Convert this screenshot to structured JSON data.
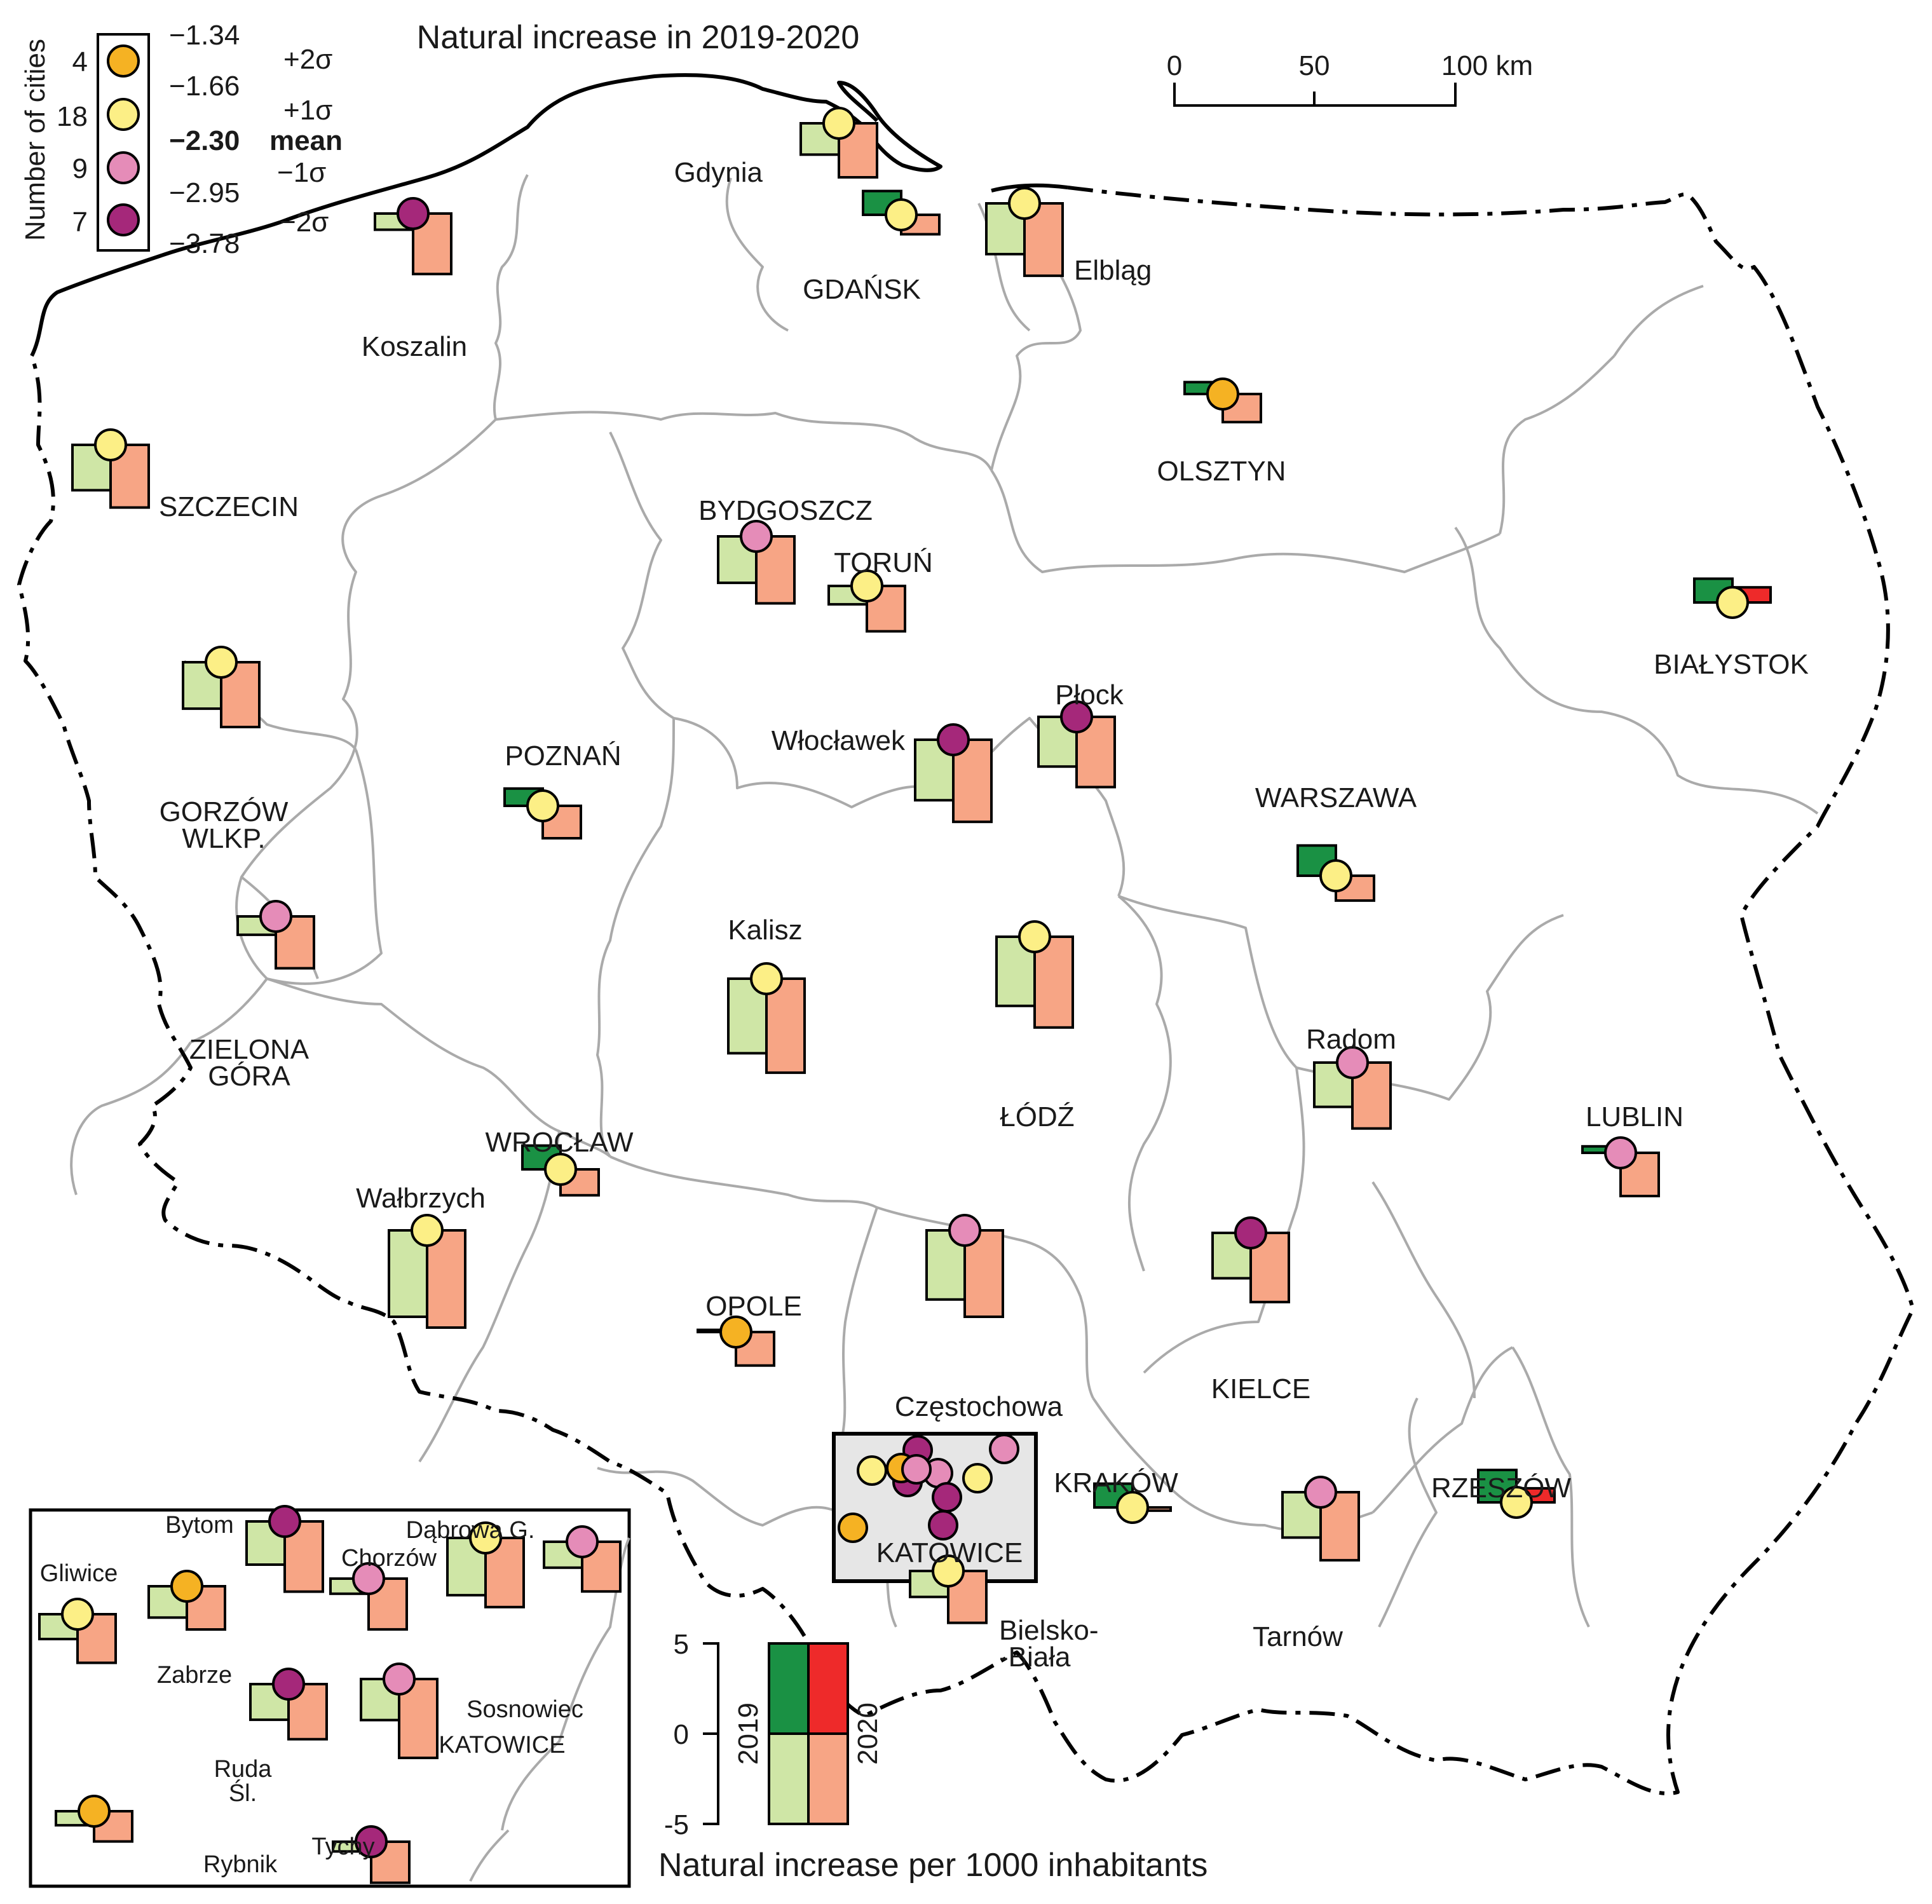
{
  "title": "Natural increase in 2019-2020",
  "colors": {
    "pos_2019": "#1a9144",
    "pos_2020": "#ee2a2a",
    "neg_2019": "#cfe6a6",
    "neg_2020": "#f7a585",
    "class_1": "#f5b223",
    "class_2": "#fcef86",
    "class_3": "#e58cb8",
    "class_4": "#a5287a",
    "border": "#aaaaaa",
    "country_border": "#000000"
  },
  "legend_classes": {
    "axis_label": "Number of cities",
    "counts": [
      "4",
      "18",
      "9",
      "7"
    ],
    "breaks": [
      "−1.34",
      "−1.66",
      "−2.30",
      "−2.95",
      "−3.78"
    ],
    "sigma_labels": [
      "+2σ",
      "+1σ",
      "mean",
      "−1σ",
      "−2σ"
    ]
  },
  "scale_bar": {
    "ticks": [
      "0",
      "50",
      "100 km"
    ]
  },
  "bar_legend": {
    "ticks": [
      "5",
      "0",
      "-5"
    ],
    "year_left": "2019",
    "year_right": "2020",
    "caption": "Natural increase per 1000 inhabitants"
  },
  "cities": [
    {
      "name": "Koszalin",
      "v2019": -1.5,
      "v2020": -5.6,
      "cls": 4
    },
    {
      "name": "Gdynia",
      "v2019": -2.9,
      "v2020": -5.0,
      "cls": 2
    },
    {
      "name": "GDAŃSK",
      "v2019": 2.2,
      "v2020": -1.8,
      "cls": 2
    },
    {
      "name": "Elbląg",
      "v2019": -4.7,
      "v2020": -6.7,
      "cls": 2
    },
    {
      "name": "OLSZTYN",
      "v2019": 1.1,
      "v2020": -2.6,
      "cls": 1
    },
    {
      "name": "SZCZECIN",
      "v2019": -4.2,
      "v2020": -5.8,
      "cls": 2
    },
    {
      "name": "BYDGOSZCZ",
      "v2019": -4.3,
      "v2020": -6.2,
      "cls": 3
    },
    {
      "name": "TORUŃ",
      "v2019": -1.7,
      "v2020": -4.2,
      "cls": 2
    },
    {
      "name": "BIAŁYSTOK",
      "v2019": 2.2,
      "v2020": 1.4,
      "cls": 2
    },
    {
      "name": "GORZÓW WLKP.",
      "v2019": -4.3,
      "v2020": -6.0,
      "cls": 2
    },
    {
      "name": "POZNAŃ",
      "v2019": 1.6,
      "v2020": -3.0,
      "cls": 2
    },
    {
      "name": "Włocławek",
      "v2019": -5.6,
      "v2020": -7.6,
      "cls": 4
    },
    {
      "name": "Płock",
      "v2019": -4.6,
      "v2020": -6.5,
      "cls": 4
    },
    {
      "name": "WARSZAWA",
      "v2019": 2.8,
      "v2020": -2.3,
      "cls": 2
    },
    {
      "name": "ZIELONA GÓRA",
      "v2019": -1.7,
      "v2020": -4.8,
      "cls": 3
    },
    {
      "name": "Kalisz",
      "v2019": -6.9,
      "v2020": -8.7,
      "cls": 2
    },
    {
      "name": "ŁÓDŹ",
      "v2019": -6.4,
      "v2020": -8.4,
      "cls": 2
    },
    {
      "name": "Radom",
      "v2019": -4.1,
      "v2020": -6.1,
      "cls": 3
    },
    {
      "name": "LUBLIN",
      "v2019": 0.6,
      "v2020": -4.0,
      "cls": 3
    },
    {
      "name": "WROCŁAW",
      "v2019": 2.2,
      "v2020": -2.4,
      "cls": 2
    },
    {
      "name": "Wałbrzych",
      "v2019": -8.0,
      "v2020": -9.0,
      "cls": 2
    },
    {
      "name": "OPOLE",
      "v2019": 0.2,
      "v2020": -3.1,
      "cls": 1
    },
    {
      "name": "Częstochowa",
      "v2019": -6.4,
      "v2020": -8.0,
      "cls": 3
    },
    {
      "name": "KIELCE",
      "v2019": -4.2,
      "v2020": -6.4,
      "cls": 4
    },
    {
      "name": "KRAKÓW",
      "v2019": 2.2,
      "v2020": -0.3,
      "cls": 2
    },
    {
      "name": "Tarnów",
      "v2019": -4.2,
      "v2020": -6.3,
      "cls": 3
    },
    {
      "name": "RZESZÓW",
      "v2019": 3.0,
      "v2020": 1.3,
      "cls": 2
    },
    {
      "name": "Bielsko--Biała",
      "v2019": -2.4,
      "v2020": -4.8,
      "cls": 2
    },
    {
      "name": "Gliwice",
      "v2019": -2.3,
      "v2020": -4.5,
      "cls": 2
    },
    {
      "name": "Zabrze",
      "v2019": -2.9,
      "v2020": -4.0,
      "cls": 1
    },
    {
      "name": "Bytom",
      "v2019": -4.0,
      "v2020": -6.5,
      "cls": 4
    },
    {
      "name": "Chorzów",
      "v2019": -1.4,
      "v2020": -4.7,
      "cls": 3
    },
    {
      "name": "Dąbrowa G.",
      "v2019": -5.3,
      "v2020": -6.4,
      "cls": 2
    },
    {
      "name": "Sosnowiec",
      "v2019": -2.4,
      "v2020": -4.6,
      "cls": 3
    },
    {
      "name": "Ruda Śl.",
      "v2019": -3.3,
      "v2020": -5.1,
      "cls": 4
    },
    {
      "name": "KATOWICE",
      "v2019": -3.8,
      "v2020": -7.3,
      "cls": 3
    },
    {
      "name": "Rybnik",
      "v2019": -1.3,
      "v2020": -2.8,
      "cls": 1
    },
    {
      "name": "Tychy",
      "v2019": -0.9,
      "v2020": -3.8,
      "cls": 4
    }
  ],
  "inset_cluster_classes": [
    4,
    4,
    1,
    2,
    3,
    4,
    3,
    2,
    3,
    4,
    1
  ]
}
